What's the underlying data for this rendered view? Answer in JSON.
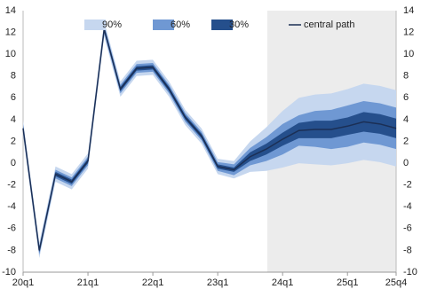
{
  "chart_data": {
    "type": "fan",
    "categories": [
      "20q1",
      null,
      null,
      null,
      "21q1",
      null,
      null,
      null,
      "22q1",
      null,
      null,
      null,
      "23q1",
      null,
      null,
      null,
      "24q1",
      null,
      null,
      null,
      "25q1",
      null,
      null,
      "25q4"
    ],
    "series": [
      {
        "name": "90%",
        "color": "#c6d7ef",
        "upper": [
          3.9,
          -7.3,
          -0.3,
          -1.0,
          0.9,
          13.0,
          7.5,
          9.4,
          9.5,
          7.5,
          4.9,
          3.2,
          0.4,
          0.2,
          2.0,
          3.3,
          4.8,
          6.0,
          6.3,
          6.4,
          6.8,
          7.3,
          7.1,
          6.7
        ],
        "lower": [
          2.5,
          -8.7,
          -1.7,
          -2.4,
          -0.5,
          11.6,
          6.1,
          8.0,
          8.1,
          6.1,
          3.5,
          1.8,
          -1.0,
          -1.4,
          -0.8,
          -0.7,
          -0.4,
          0.0,
          -0.1,
          -0.2,
          0.0,
          0.3,
          0.1,
          -0.3
        ]
      },
      {
        "name": "60%",
        "color": "#6f98d3",
        "upper": [
          3.6,
          -7.6,
          -0.6,
          -1.3,
          0.6,
          12.7,
          7.2,
          9.1,
          9.2,
          7.2,
          4.6,
          2.9,
          0.1,
          -0.1,
          1.4,
          2.4,
          3.6,
          4.4,
          4.8,
          4.9,
          5.3,
          5.7,
          5.5,
          5.1
        ],
        "lower": [
          2.8,
          -8.4,
          -1.4,
          -2.1,
          -0.2,
          11.9,
          6.4,
          8.3,
          8.4,
          6.4,
          3.8,
          2.1,
          -0.7,
          -1.1,
          -0.2,
          0.2,
          0.8,
          1.6,
          1.5,
          1.3,
          1.5,
          1.9,
          1.7,
          1.3
        ]
      },
      {
        "name": "30%",
        "color": "#254f8c",
        "upper": [
          3.4,
          -7.8,
          -0.8,
          -1.5,
          0.4,
          12.5,
          7.0,
          8.9,
          9.0,
          7.0,
          4.4,
          2.7,
          -0.1,
          -0.4,
          1.0,
          1.8,
          2.8,
          3.7,
          3.9,
          3.9,
          4.2,
          4.7,
          4.5,
          4.1
        ],
        "lower": [
          3.0,
          -8.2,
          -1.2,
          -1.9,
          0.0,
          12.1,
          6.6,
          8.5,
          8.6,
          6.6,
          4.0,
          2.3,
          -0.5,
          -0.8,
          0.2,
          0.8,
          1.6,
          2.3,
          2.3,
          2.3,
          2.6,
          2.9,
          2.7,
          2.3
        ]
      },
      {
        "name": "central path",
        "color": "#1b2f55",
        "values": [
          3.2,
          -8,
          -1,
          -1.7,
          0.2,
          12.3,
          6.8,
          8.7,
          8.8,
          6.8,
          4.2,
          2.5,
          -0.3,
          -0.6,
          0.6,
          1.3,
          2.2,
          3.0,
          3.1,
          3.1,
          3.4,
          3.8,
          3.6,
          3.2
        ]
      }
    ],
    "ylim": [
      -10,
      14
    ],
    "yticks": [
      -10,
      -8,
      -6,
      -4,
      -2,
      0,
      2,
      4,
      6,
      8,
      10,
      12,
      14
    ],
    "y2lim": [
      -10,
      14
    ],
    "y2ticks": [
      -10,
      -8,
      -6,
      -4,
      -2,
      0,
      2,
      4,
      6,
      8,
      10,
      12,
      14
    ],
    "shade_from_index": 15,
    "shade_color": "#ececec"
  }
}
